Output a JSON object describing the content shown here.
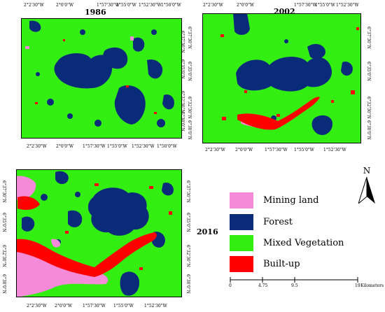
{
  "colors": {
    "mining_land": "#f48ad8",
    "forest": "#0a2a7a",
    "mixed_vegetation": "#33ee11",
    "built_up": "#ff0000",
    "frame": "#000000"
  },
  "maps": [
    {
      "year": "1986",
      "top_ticks": [
        "2°2'30\"W",
        "2°0'0\"W",
        "1°57'30\"W",
        "1°55'0\"W",
        "1°52'30\"W",
        "1°50'0\"W"
      ],
      "bottom_ticks": [
        "2°2'30\"W",
        "2°0'0\"W",
        "1°57'30\"W",
        "1°55'0\"W",
        "1°52'30\"W",
        "1°50'0\"W"
      ],
      "right_ticks": [
        "6°37'30\"N",
        "6°35'0\"N",
        "6°32'30\"N",
        "6°30'0\"N"
      ]
    },
    {
      "year": "2002",
      "top_ticks": [
        "2°2'30\"W",
        "2°0'0\"W",
        "1°57'30\"W",
        "1°55'0\"W",
        "1°52'30\"W"
      ],
      "bottom_ticks": [
        "2°2'30\"W",
        "2°0'0\"W",
        "1°57'30\"W",
        "1°55'0\"W",
        "1°52'30\"W"
      ],
      "left_ticks": [
        "6°37'30\"N",
        "6°35'0\"N",
        "6°32'30\"N",
        "6°30'0\"N"
      ],
      "right_ticks": [
        "6°37'30\"N",
        "6°35'0\"N",
        "6°32'30\"N",
        "6°30'0\"N"
      ]
    },
    {
      "year": "2016",
      "bottom_ticks": [
        "2°2'30\"W",
        "2°0'0\"W",
        "1°57'30\"W",
        "1°55'0\"W",
        "1°52'30\"W"
      ],
      "left_ticks": [
        "6°37'30\"N",
        "6°35'0\"N",
        "6°32'30\"N",
        "6°30'0\"N"
      ],
      "right_ticks": [
        "6°37'30\"N",
        "6°35'0\"N",
        "6°32'30\"N",
        "6°30'0\"N"
      ]
    }
  ],
  "legend": [
    {
      "label": "Mining land",
      "color": "#f48ad8"
    },
    {
      "label": "Forest",
      "color": "#0a2a7a"
    },
    {
      "label": "Mixed Vegetation",
      "color": "#33ee11"
    },
    {
      "label": "Built-up",
      "color": "#ff0000"
    }
  ],
  "north_arrow": {
    "label": "N"
  },
  "scale_bar": {
    "ticks": [
      "0",
      "4.75",
      "9.5",
      "19"
    ],
    "unit": "Kilometers"
  }
}
